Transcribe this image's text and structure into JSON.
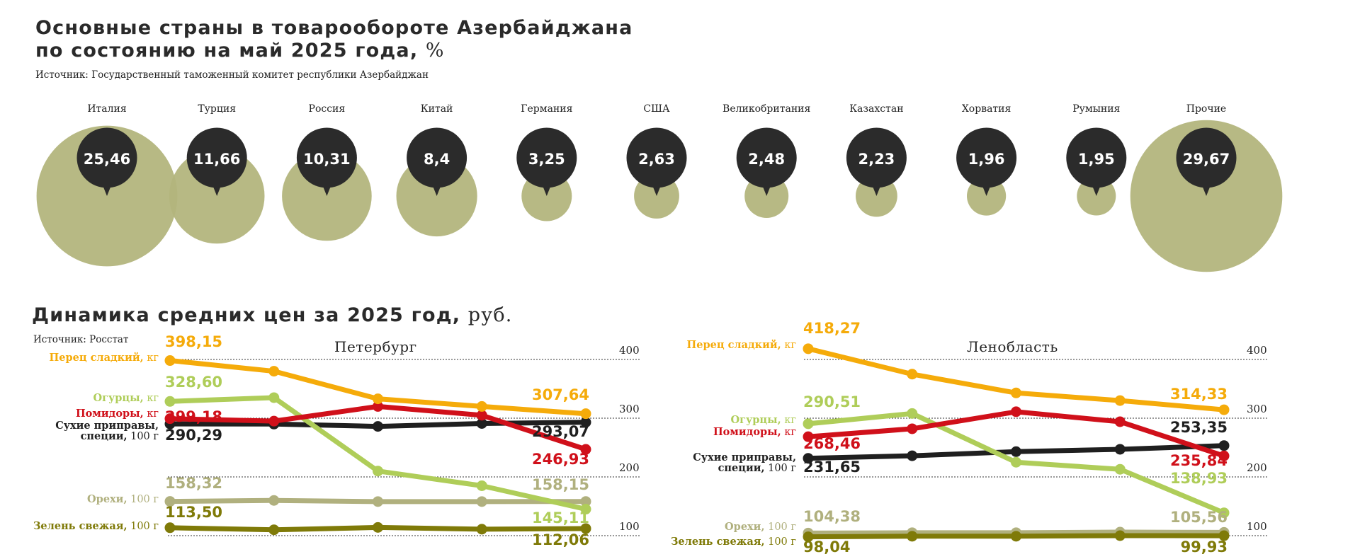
{
  "header": {
    "title_line1": "Основные страны в товарообороте Азербайджана",
    "title_line2": "по состоянию на май 2025 года,",
    "unit": "%",
    "source": "Источник: Государственный таможенный комитет республики Азербайджан"
  },
  "prices": {
    "title": "Динамика средних цен за 2025 год,",
    "unit": "руб.",
    "source": "Источник: Росстат",
    "spb_title": "Петербург",
    "lo_title": "Ленобласть"
  },
  "colors": {
    "bubble": "#b3b57c",
    "badge": "#2b2b2b",
    "pepper": "#f5ab0a",
    "cucumber": "#afcd59",
    "tomato": "#d0101a",
    "spices": "#1f1f1f",
    "nuts": "#b0b07e",
    "greens": "#7f7a08"
  },
  "chart_data": [
    {
      "type": "bubble",
      "title": "Основные страны в товарообороте Азербайджана по состоянию на май 2025 года, %",
      "categories": [
        "Италия",
        "Турция",
        "Россия",
        "Китай",
        "Германия",
        "США",
        "Великобритания",
        "Казахстан",
        "Хорватия",
        "Румыния",
        "Прочие"
      ],
      "values": [
        25.46,
        11.66,
        10.31,
        8.4,
        3.25,
        2.63,
        2.48,
        2.23,
        1.96,
        1.95,
        29.67
      ],
      "labels": [
        "25,46",
        "11,66",
        "10,31",
        "8,4",
        "3,25",
        "2,63",
        "2,48",
        "2,23",
        "1,96",
        "1,95",
        "29,67"
      ]
    },
    {
      "type": "line",
      "title": "Петербург",
      "ylim": [
        100,
        400
      ],
      "yticks": [
        "100",
        "200",
        "300",
        "400"
      ],
      "series": [
        {
          "key": "pepper",
          "name": "Перец сладкий,",
          "unit": "кг",
          "values": [
            398.15,
            380,
            333,
            320,
            307.64
          ],
          "start_label": "398,15",
          "end_label": "307,64"
        },
        {
          "key": "cucumber",
          "name": "Огурцы,",
          "unit": "кг",
          "values": [
            328.6,
            335,
            210,
            185,
            145.11
          ],
          "start_label": "328,60",
          "end_label": "145,11"
        },
        {
          "key": "tomato",
          "name": "Помидоры,",
          "unit": "кг",
          "values": [
            299.18,
            295,
            320,
            305,
            246.93
          ],
          "start_label": "299,18",
          "end_label": "246,93"
        },
        {
          "key": "spices",
          "name": "Сухие приправы,",
          "name2": "специи,",
          "unit": "100 г",
          "values": [
            290.29,
            290,
            286,
            291,
            293.07
          ],
          "start_label": "290,29",
          "end_label": "293,07"
        },
        {
          "key": "nuts",
          "name": "Орехи,",
          "unit": "100 г",
          "values": [
            158.32,
            160,
            158,
            158,
            158.15
          ],
          "start_label": "158,32",
          "end_label": "158,15"
        },
        {
          "key": "greens",
          "name": "Зелень свежая,",
          "unit": "100 г",
          "values": [
            113.5,
            110,
            114,
            111,
            112.06
          ],
          "start_label": "113,50",
          "end_label": "112,06"
        }
      ]
    },
    {
      "type": "line",
      "title": "Ленобласть",
      "ylim": [
        100,
        400
      ],
      "yticks": [
        "100",
        "200",
        "300",
        "400"
      ],
      "series": [
        {
          "key": "pepper",
          "name": "Перец сладкий,",
          "unit": "кг",
          "values": [
            418.27,
            375,
            343,
            330,
            314.33
          ],
          "start_label": "418,27",
          "end_label": "314,33"
        },
        {
          "key": "cucumber",
          "name": "Огурцы,",
          "unit": "кг",
          "values": [
            290.51,
            308,
            225,
            213,
            138.93
          ],
          "start_label": "290,51",
          "end_label": "138,93"
        },
        {
          "key": "tomato",
          "name": "Помидоры,",
          "unit": "кг",
          "values": [
            268.46,
            282,
            311,
            294,
            235.84
          ],
          "start_label": "268,46",
          "end_label": "235,84"
        },
        {
          "key": "spices",
          "name": "Сухие приправы,",
          "name2": "специи,",
          "unit": "100 г",
          "values": [
            231.65,
            236,
            243,
            247,
            253.35
          ],
          "start_label": "231,65",
          "end_label": "253,35"
        },
        {
          "key": "nuts",
          "name": "Орехи,",
          "unit": "100 г",
          "values": [
            104.38,
            105,
            105,
            106,
            105.56
          ],
          "start_label": "104,38",
          "end_label": "105,56"
        },
        {
          "key": "greens",
          "name": "Зелень свежая,",
          "unit": "100 г",
          "values": [
            98.04,
            99,
            99,
            100,
            99.93
          ],
          "start_label": "98,04",
          "end_label": "99,93"
        }
      ]
    }
  ]
}
